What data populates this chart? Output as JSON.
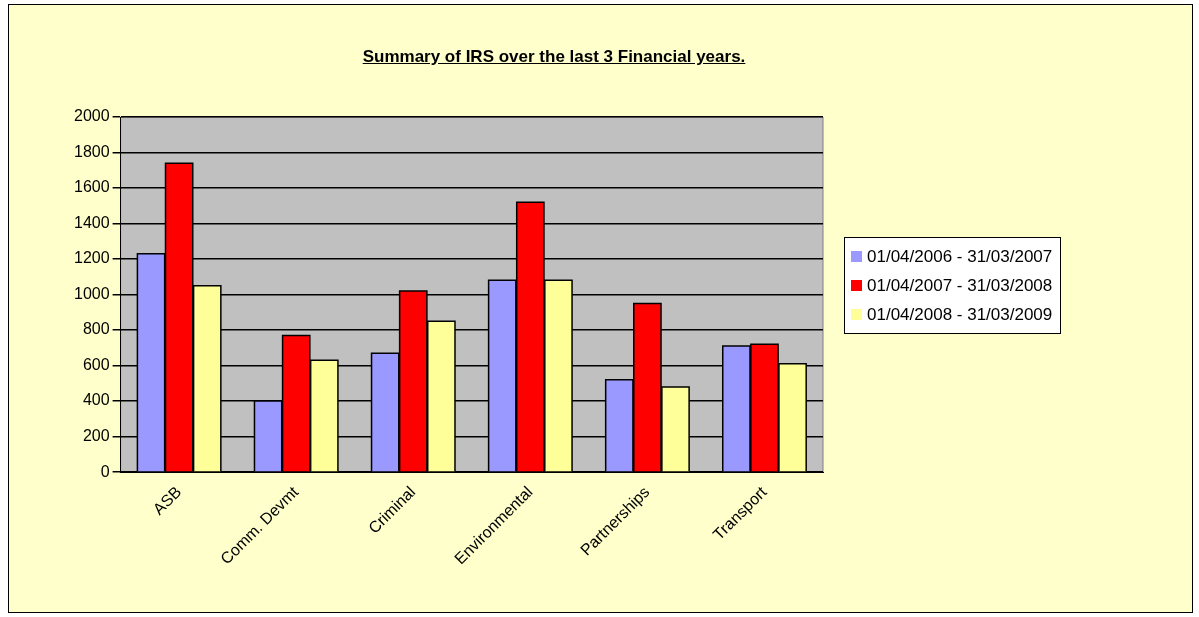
{
  "chart_data": {
    "type": "bar",
    "title": "Summary of IRS over the last 3 Financial years.",
    "categories": [
      "ASB",
      "Comm. Devmt",
      "Criminal",
      "Environmental",
      "Partnerships",
      "Transport"
    ],
    "series": [
      {
        "name": "01/04/2006 - 31/03/2007",
        "color": "#9999ff",
        "values": [
          1230,
          400,
          670,
          1080,
          520,
          710
        ]
      },
      {
        "name": "01/04/2007 - 31/03/2008",
        "color": "#ff0000",
        "values": [
          1740,
          770,
          1020,
          1520,
          950,
          720
        ]
      },
      {
        "name": "01/04/2008 - 31/03/2009",
        "color": "#ffff99",
        "values": [
          1050,
          630,
          850,
          1080,
          480,
          610
        ]
      }
    ],
    "ylim": [
      0,
      2000
    ],
    "yticks": [
      0,
      200,
      400,
      600,
      800,
      1000,
      1200,
      1400,
      1600,
      1800,
      2000
    ],
    "grid": "y",
    "legend": "right"
  }
}
